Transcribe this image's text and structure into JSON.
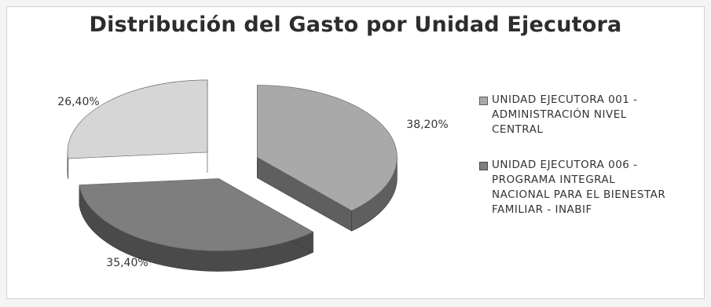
{
  "chart_data": {
    "type": "pie",
    "title": "Distribución del Gasto por Unidad Ejecutora",
    "slices": [
      {
        "label": "UNIDAD EJECUTORA 001 - ADMINISTRACIÓN NIVEL CENTRAL",
        "value": 38.2,
        "value_label": "38,20%",
        "color": "#a9a9a9",
        "dark": "#5f5f5f",
        "in_legend": true
      },
      {
        "label": "UNIDAD EJECUTORA 006 - PROGRAMA INTEGRAL NACIONAL PARA EL BIENESTAR FAMILIAR - INABIF",
        "value": 35.4,
        "value_label": "35,40%",
        "color": "#7e7e7e",
        "dark": "#4a4a4a",
        "in_legend": true
      },
      {
        "label": "",
        "value": 26.4,
        "value_label": "26,40%",
        "color": "#d6d6d6",
        "dark": "#6a6a6a",
        "in_legend": false
      }
    ],
    "legend_position": "right"
  }
}
